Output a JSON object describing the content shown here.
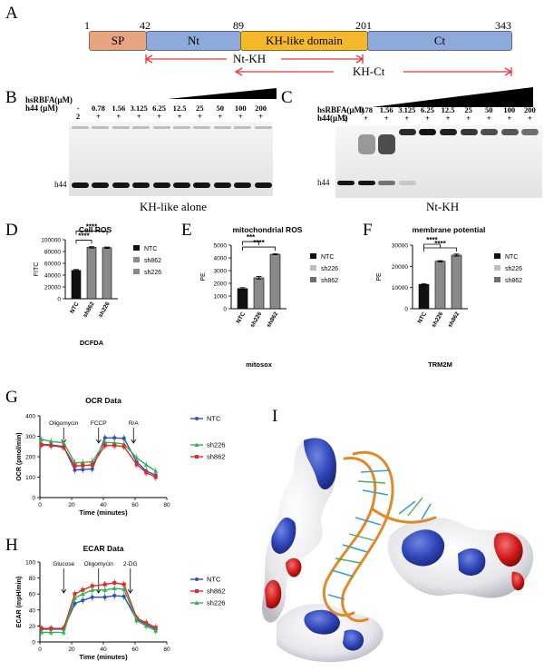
{
  "panel_letters": {
    "A": "A",
    "B": "B",
    "C": "C",
    "D": "D",
    "E": "E",
    "F": "F",
    "G": "G",
    "H": "H",
    "I": "I"
  },
  "domain_map": {
    "positions": [
      "1",
      "42",
      "89",
      "201",
      "343"
    ],
    "domains": [
      {
        "label": "SP",
        "color": "#e8a47e"
      },
      {
        "label": "Nt",
        "color": "#8eaadb"
      },
      {
        "label": "KH-like domain",
        "color": "#f5b82a"
      },
      {
        "label": "Ct",
        "color": "#8eaadb"
      }
    ],
    "constructs": [
      "Nt-KH",
      "KH-Ct"
    ],
    "arrow_color": "#e8383b"
  },
  "gel_B": {
    "row1_label": "hsRBFA(μM)",
    "row2_label": "h44  (μM)",
    "row1_values": [
      "-",
      "0.78",
      "1.56",
      "3.125",
      "6.25",
      "12.5",
      "25",
      "50",
      "100",
      "200"
    ],
    "row2_values": [
      "2",
      "+",
      "+",
      "+",
      "+",
      "+",
      "+",
      "+",
      "+",
      "+"
    ],
    "band_label": "h44",
    "caption": "KH-like alone"
  },
  "gel_C": {
    "row1_label": "hsRBFA(μM)",
    "row2_label": "h44(μM)",
    "row1_values": [
      "-",
      "0.78",
      "1.56",
      "3.125",
      "6.25",
      "12.5",
      "25",
      "50",
      "100",
      "200"
    ],
    "row2_values": [
      "2",
      "+",
      "+",
      "+",
      "+",
      "+",
      "+",
      "+",
      "+",
      "+"
    ],
    "band_label": "h44",
    "caption": "Nt-KH"
  },
  "chart_data": [
    {
      "panel": "D",
      "type": "bar",
      "title": "Cell ROS",
      "ylabel": "FITC",
      "xlabel": "DCFDA",
      "categories": [
        "NTC",
        "sh862",
        "sh226"
      ],
      "values": [
        48000,
        87000,
        86500
      ],
      "errors": [
        1500,
        1200,
        1200
      ],
      "ylim": [
        0,
        100000
      ],
      "yticks": [
        "0",
        "20000",
        "40000",
        "60000",
        "80000",
        "100000"
      ],
      "colors": [
        "#111111",
        "#8a8a8a",
        "#8a8a8a"
      ],
      "legend": [
        "NTC",
        "sh862",
        "sh226"
      ],
      "legend_colors": [
        "#111111",
        "#8a8a8a",
        "#8a8a8a"
      ],
      "sig": [
        "****",
        "****"
      ]
    },
    {
      "panel": "E",
      "type": "bar",
      "title": "mitochondrial ROS",
      "ylabel": "PE",
      "xlabel": "mitosox",
      "categories": [
        "NTC",
        "sh226",
        "sh862"
      ],
      "values": [
        1580,
        2430,
        4280
      ],
      "errors": [
        80,
        100,
        40
      ],
      "ylim": [
        0,
        5000
      ],
      "yticks": [
        "0",
        "1000",
        "2000",
        "3000",
        "4000",
        "5000"
      ],
      "colors": [
        "#111111",
        "#8a8a8a",
        "#8a8a8a"
      ],
      "legend": [
        "NTC",
        "sh226",
        "sh862"
      ],
      "legend_colors": [
        "#111111",
        "#bdbdbd",
        "#6e6e6e"
      ],
      "sig": [
        "***",
        "****"
      ]
    },
    {
      "panel": "F",
      "type": "bar",
      "title": "membrane potential",
      "ylabel": "PE",
      "xlabel": "TRM2M",
      "categories": [
        "NTC",
        "sh226",
        "sh862"
      ],
      "values": [
        11500,
        22400,
        25300
      ],
      "errors": [
        400,
        300,
        500
      ],
      "ylim": [
        0,
        30000
      ],
      "yticks": [
        "0",
        "10000",
        "20000",
        "30000"
      ],
      "colors": [
        "#111111",
        "#8a8a8a",
        "#8a8a8a"
      ],
      "legend": [
        "NTC",
        "sh226",
        "sh862"
      ],
      "legend_colors": [
        "#111111",
        "#bdbdbd",
        "#6e6e6e"
      ],
      "sig": [
        "****",
        "****"
      ]
    },
    {
      "panel": "G",
      "type": "line",
      "title": "OCR Data",
      "ylabel": "OCR (pmol/min)",
      "xlabel": "Time (minutes)",
      "x": [
        1,
        7,
        15,
        22,
        27,
        33,
        41,
        47,
        53,
        61,
        67,
        73
      ],
      "xlim": [
        0,
        80
      ],
      "ylim": [
        0,
        400
      ],
      "xticks": [
        "0",
        "20",
        "40",
        "60",
        "80"
      ],
      "yticks": [
        "0",
        "100",
        "200",
        "300",
        "400"
      ],
      "series": [
        {
          "name": "NTC",
          "color": "#2f4fbf",
          "marker": "circle",
          "values": [
            260,
            258,
            250,
            135,
            137,
            140,
            292,
            292,
            290,
            175,
            130,
            110
          ]
        },
        {
          "name": "sh226",
          "color": "#34b34a",
          "marker": "triangle",
          "values": [
            285,
            275,
            268,
            170,
            172,
            175,
            270,
            268,
            262,
            195,
            160,
            130
          ]
        },
        {
          "name": "sh862",
          "color": "#e02a2a",
          "marker": "square",
          "values": [
            258,
            254,
            246,
            155,
            157,
            160,
            255,
            255,
            250,
            162,
            122,
            100
          ]
        }
      ],
      "legend": [
        "NTC",
        "sh226",
        "sh862"
      ],
      "annotations": [
        "Oligomycin",
        "FCCP",
        "R/A"
      ],
      "annotation_x": [
        15,
        37,
        59
      ]
    },
    {
      "panel": "H",
      "type": "line",
      "title": "ECAR Data",
      "ylabel": "ECAR (mpH/min)",
      "xlabel": "Time (minutes)",
      "x": [
        1,
        7,
        15,
        22,
        27,
        33,
        41,
        47,
        53,
        61,
        67,
        73
      ],
      "xlim": [
        0,
        80
      ],
      "ylim": [
        0,
        100
      ],
      "xticks": [
        "0",
        "20",
        "40",
        "60",
        "80"
      ],
      "yticks": [
        "0",
        "20",
        "40",
        "60",
        "80",
        "100"
      ],
      "series": [
        {
          "name": "NTC",
          "color": "#2f4fbf",
          "marker": "circle",
          "values": [
            16,
            16,
            16,
            48,
            52,
            56,
            56,
            58,
            57,
            28,
            22,
            16
          ]
        },
        {
          "name": "sh862",
          "color": "#e02a2a",
          "marker": "square",
          "values": [
            17,
            17,
            17,
            60,
            65,
            70,
            72,
            74,
            72,
            30,
            24,
            18
          ]
        },
        {
          "name": "sh226",
          "color": "#34b34a",
          "marker": "triangle",
          "values": [
            12,
            12,
            12,
            55,
            60,
            65,
            65,
            67,
            66,
            27,
            20,
            14
          ]
        }
      ],
      "legend": [
        "NTC",
        "sh862",
        "sh226"
      ],
      "annotations": [
        "Glucose",
        "Oligomycin",
        "2-DG"
      ],
      "annotation_x": [
        15,
        37,
        57
      ]
    }
  ]
}
